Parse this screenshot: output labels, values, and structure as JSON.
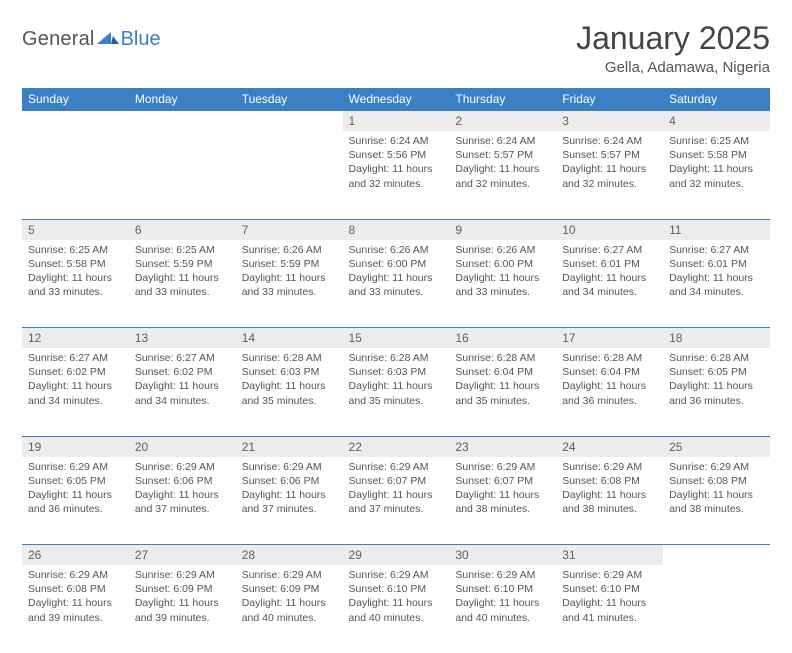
{
  "logo": {
    "text1": "General",
    "text2": "Blue"
  },
  "title": "January 2025",
  "location": "Gella, Adamawa, Nigeria",
  "colors": {
    "header_bg": "#3b7fc4",
    "header_text": "#ffffff",
    "daynum_bg": "#ececec",
    "daynum_text": "#606060",
    "body_text": "#555555",
    "rule": "#3b7fc4"
  },
  "fonts": {
    "title_size": 32,
    "location_size": 15,
    "dayhead_size": 12,
    "daynum_size": 12,
    "detail_size": 10.5
  },
  "day_headers": [
    "Sunday",
    "Monday",
    "Tuesday",
    "Wednesday",
    "Thursday",
    "Friday",
    "Saturday"
  ],
  "weeks": [
    [
      null,
      null,
      null,
      {
        "n": "1",
        "sunrise": "6:24 AM",
        "sunset": "5:56 PM",
        "dl": "11 hours and 32 minutes."
      },
      {
        "n": "2",
        "sunrise": "6:24 AM",
        "sunset": "5:57 PM",
        "dl": "11 hours and 32 minutes."
      },
      {
        "n": "3",
        "sunrise": "6:24 AM",
        "sunset": "5:57 PM",
        "dl": "11 hours and 32 minutes."
      },
      {
        "n": "4",
        "sunrise": "6:25 AM",
        "sunset": "5:58 PM",
        "dl": "11 hours and 32 minutes."
      }
    ],
    [
      {
        "n": "5",
        "sunrise": "6:25 AM",
        "sunset": "5:58 PM",
        "dl": "11 hours and 33 minutes."
      },
      {
        "n": "6",
        "sunrise": "6:25 AM",
        "sunset": "5:59 PM",
        "dl": "11 hours and 33 minutes."
      },
      {
        "n": "7",
        "sunrise": "6:26 AM",
        "sunset": "5:59 PM",
        "dl": "11 hours and 33 minutes."
      },
      {
        "n": "8",
        "sunrise": "6:26 AM",
        "sunset": "6:00 PM",
        "dl": "11 hours and 33 minutes."
      },
      {
        "n": "9",
        "sunrise": "6:26 AM",
        "sunset": "6:00 PM",
        "dl": "11 hours and 33 minutes."
      },
      {
        "n": "10",
        "sunrise": "6:27 AM",
        "sunset": "6:01 PM",
        "dl": "11 hours and 34 minutes."
      },
      {
        "n": "11",
        "sunrise": "6:27 AM",
        "sunset": "6:01 PM",
        "dl": "11 hours and 34 minutes."
      }
    ],
    [
      {
        "n": "12",
        "sunrise": "6:27 AM",
        "sunset": "6:02 PM",
        "dl": "11 hours and 34 minutes."
      },
      {
        "n": "13",
        "sunrise": "6:27 AM",
        "sunset": "6:02 PM",
        "dl": "11 hours and 34 minutes."
      },
      {
        "n": "14",
        "sunrise": "6:28 AM",
        "sunset": "6:03 PM",
        "dl": "11 hours and 35 minutes."
      },
      {
        "n": "15",
        "sunrise": "6:28 AM",
        "sunset": "6:03 PM",
        "dl": "11 hours and 35 minutes."
      },
      {
        "n": "16",
        "sunrise": "6:28 AM",
        "sunset": "6:04 PM",
        "dl": "11 hours and 35 minutes."
      },
      {
        "n": "17",
        "sunrise": "6:28 AM",
        "sunset": "6:04 PM",
        "dl": "11 hours and 36 minutes."
      },
      {
        "n": "18",
        "sunrise": "6:28 AM",
        "sunset": "6:05 PM",
        "dl": "11 hours and 36 minutes."
      }
    ],
    [
      {
        "n": "19",
        "sunrise": "6:29 AM",
        "sunset": "6:05 PM",
        "dl": "11 hours and 36 minutes."
      },
      {
        "n": "20",
        "sunrise": "6:29 AM",
        "sunset": "6:06 PM",
        "dl": "11 hours and 37 minutes."
      },
      {
        "n": "21",
        "sunrise": "6:29 AM",
        "sunset": "6:06 PM",
        "dl": "11 hours and 37 minutes."
      },
      {
        "n": "22",
        "sunrise": "6:29 AM",
        "sunset": "6:07 PM",
        "dl": "11 hours and 37 minutes."
      },
      {
        "n": "23",
        "sunrise": "6:29 AM",
        "sunset": "6:07 PM",
        "dl": "11 hours and 38 minutes."
      },
      {
        "n": "24",
        "sunrise": "6:29 AM",
        "sunset": "6:08 PM",
        "dl": "11 hours and 38 minutes."
      },
      {
        "n": "25",
        "sunrise": "6:29 AM",
        "sunset": "6:08 PM",
        "dl": "11 hours and 38 minutes."
      }
    ],
    [
      {
        "n": "26",
        "sunrise": "6:29 AM",
        "sunset": "6:08 PM",
        "dl": "11 hours and 39 minutes."
      },
      {
        "n": "27",
        "sunrise": "6:29 AM",
        "sunset": "6:09 PM",
        "dl": "11 hours and 39 minutes."
      },
      {
        "n": "28",
        "sunrise": "6:29 AM",
        "sunset": "6:09 PM",
        "dl": "11 hours and 40 minutes."
      },
      {
        "n": "29",
        "sunrise": "6:29 AM",
        "sunset": "6:10 PM",
        "dl": "11 hours and 40 minutes."
      },
      {
        "n": "30",
        "sunrise": "6:29 AM",
        "sunset": "6:10 PM",
        "dl": "11 hours and 40 minutes."
      },
      {
        "n": "31",
        "sunrise": "6:29 AM",
        "sunset": "6:10 PM",
        "dl": "11 hours and 41 minutes."
      },
      null
    ]
  ],
  "labels": {
    "sunrise": "Sunrise:",
    "sunset": "Sunset:",
    "daylight": "Daylight:"
  }
}
